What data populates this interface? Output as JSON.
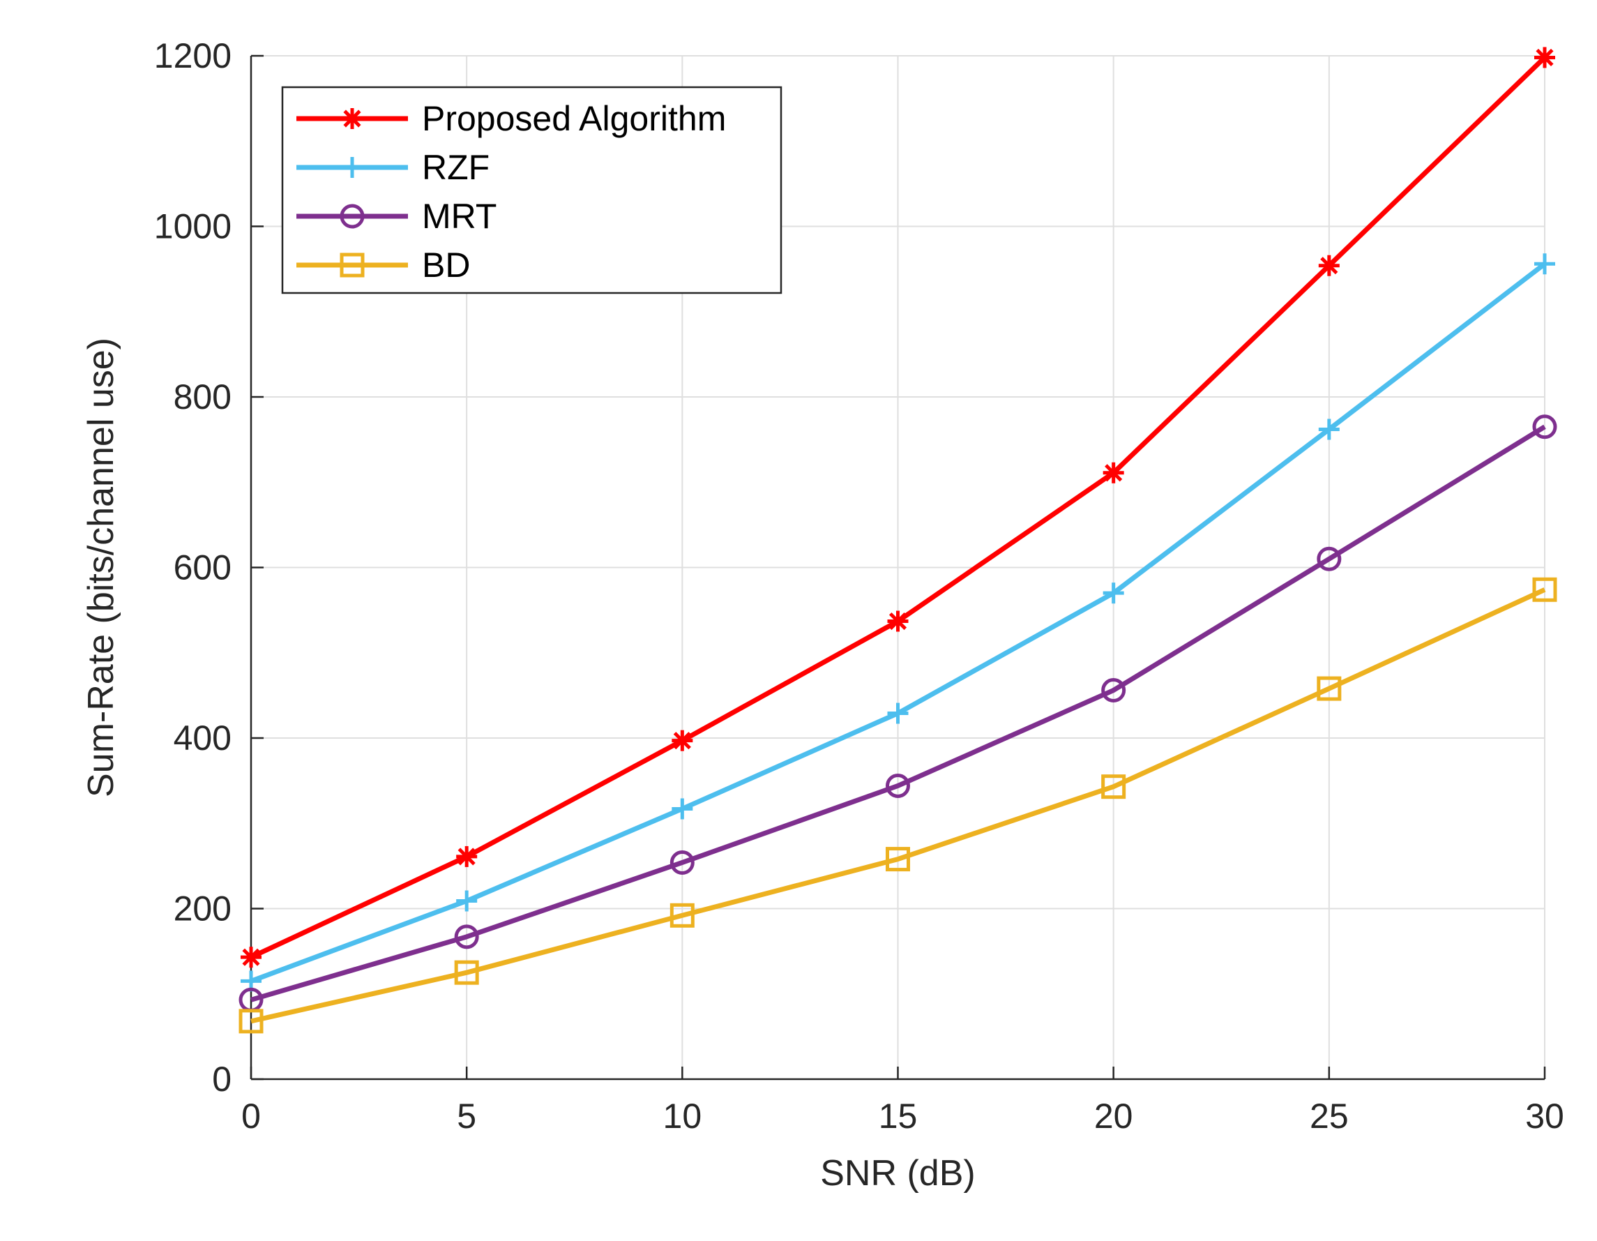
{
  "chart_data": {
    "type": "line",
    "xlabel": "SNR (dB)",
    "ylabel": "Sum-Rate (bits/channel use)",
    "xlim": [
      0,
      30
    ],
    "ylim": [
      0,
      1200
    ],
    "xticks": [
      0,
      5,
      10,
      15,
      20,
      25,
      30
    ],
    "yticks": [
      0,
      200,
      400,
      600,
      800,
      1000,
      1200
    ],
    "grid": true,
    "legend_position": "top-left",
    "x": [
      0,
      5,
      10,
      15,
      20,
      25,
      30
    ],
    "series": [
      {
        "name": "Proposed Algorithm",
        "color": "#ff0000",
        "marker": "asterisk",
        "values": [
          143,
          261,
          397,
          537,
          711,
          954,
          1198
        ]
      },
      {
        "name": "RZF",
        "color": "#4dbeee",
        "marker": "plus",
        "values": [
          115,
          209,
          317,
          429,
          570,
          762,
          956
        ]
      },
      {
        "name": "MRT",
        "color": "#7e2f8e",
        "marker": "circle",
        "values": [
          93,
          167,
          254,
          344,
          456,
          610,
          765
        ]
      },
      {
        "name": "BD",
        "color": "#edb120",
        "marker": "square",
        "values": [
          68,
          125,
          192,
          258,
          343,
          458,
          574
        ]
      }
    ]
  }
}
